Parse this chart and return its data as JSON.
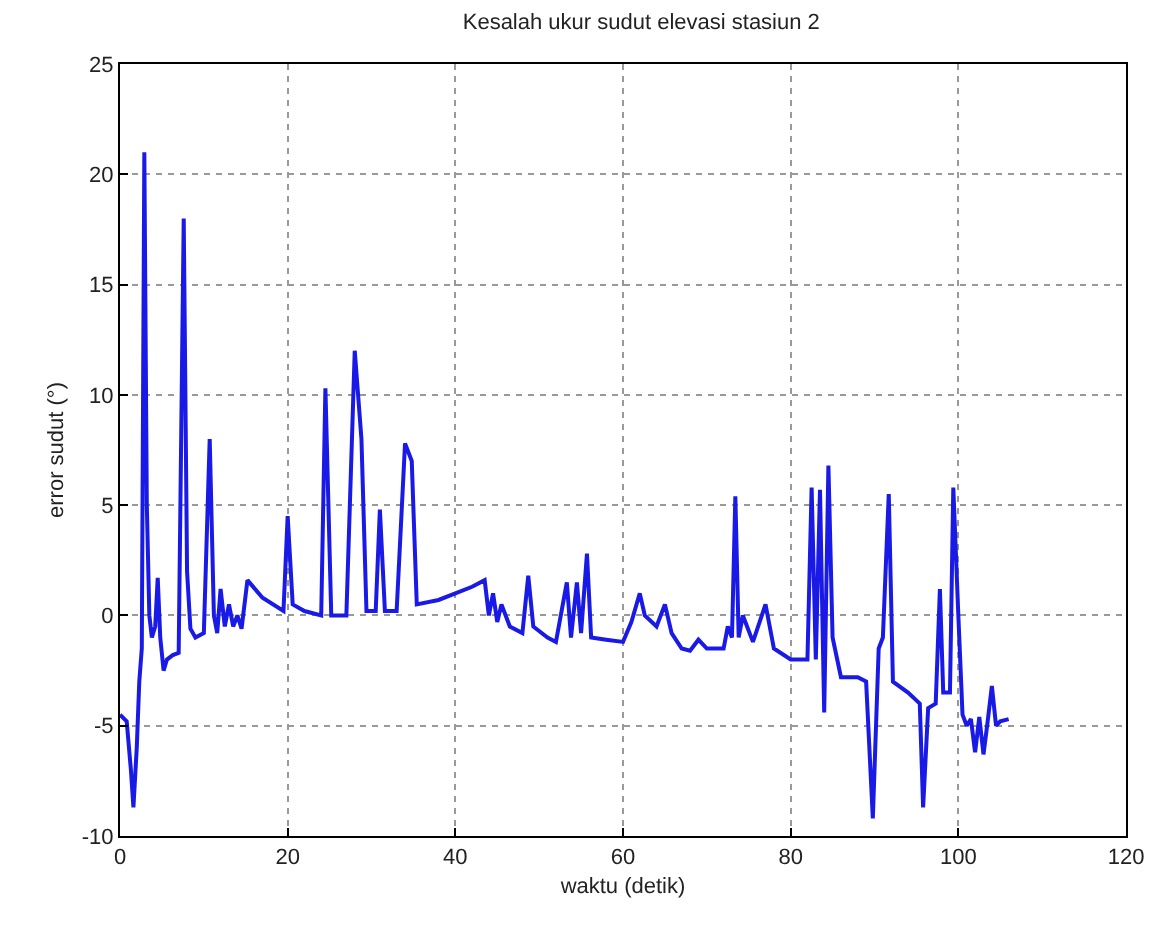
{
  "chart_data": {
    "type": "line",
    "title": "Kesalah ukur sudut elevasi stasiun 2",
    "xlabel": "waktu (detik)",
    "ylabel": "error sudut (°)",
    "xlim": [
      0,
      120
    ],
    "xticks": [
      0,
      20,
      40,
      60,
      80,
      100,
      120
    ],
    "ylim": [
      -10,
      25
    ],
    "yticks": [
      -10,
      -5,
      0,
      5,
      10,
      15,
      20,
      25
    ],
    "grid": true,
    "line_style": "solid",
    "marker": "none",
    "series": [
      {
        "color": "#1a1ae6",
        "x": [
          0,
          0.8,
          1.3,
          1.6,
          2,
          2.3,
          2.6,
          2.9,
          3.2,
          3.5,
          3.8,
          4.2,
          4.5,
          4.8,
          5.2,
          5.6,
          6.3,
          7,
          7.6,
          8,
          8.4,
          9,
          10,
          10.7,
          11.2,
          11.6,
          12,
          12.5,
          13,
          13.5,
          14,
          14.5,
          15.2,
          17,
          19.5,
          20,
          20.6,
          22,
          24,
          24.5,
          25.2,
          27,
          28,
          28.8,
          29.4,
          30.5,
          31,
          31.6,
          33,
          34,
          34.8,
          35.4,
          38,
          40,
          42,
          43.5,
          44,
          44.5,
          45,
          45.5,
          46.5,
          48,
          48.7,
          49.3,
          51,
          52,
          53.3,
          53.8,
          54.5,
          55,
          55.7,
          56.2,
          58,
          60,
          61,
          62,
          62.6,
          64,
          65,
          65.8,
          67,
          68,
          69,
          70,
          72,
          72.5,
          73,
          73.4,
          73.8,
          74.3,
          75.5,
          77,
          78,
          80,
          82,
          82.5,
          83,
          83.5,
          84,
          84.5,
          85,
          86,
          88,
          89,
          89.8,
          90.5,
          91,
          91.7,
          92.2,
          94,
          95.4,
          95.8,
          96.4,
          97.3,
          97.8,
          98.2,
          99,
          99.4,
          100,
          100.5,
          101,
          101.5,
          102,
          102.5,
          103,
          103.5,
          104,
          104.5,
          105,
          106
        ],
        "values": [
          -4.5,
          -4.8,
          -7,
          -8.7,
          -6,
          -3,
          -1.5,
          21,
          5,
          0,
          -1,
          -0.5,
          1.7,
          -1,
          -2.5,
          -2,
          -1.8,
          -1.7,
          18,
          2,
          -0.6,
          -1,
          -0.8,
          8,
          0,
          -0.8,
          1.2,
          -0.5,
          0.5,
          -0.5,
          0,
          -0.6,
          1.6,
          0.8,
          0.2,
          4.5,
          0.5,
          0.2,
          0,
          10.3,
          0,
          0,
          12,
          8,
          0.2,
          0.2,
          4.8,
          0.2,
          0.2,
          7.8,
          7,
          0.5,
          0.7,
          1,
          1.3,
          1.6,
          0,
          1,
          -0.3,
          0.5,
          -0.5,
          -0.8,
          1.8,
          -0.5,
          -1,
          -1.2,
          1.5,
          -1,
          1.5,
          -0.8,
          2.8,
          -1,
          -1.1,
          -1.2,
          -0.3,
          1,
          0,
          -0.5,
          0.5,
          -0.8,
          -1.5,
          -1.6,
          -1.1,
          -1.5,
          -1.5,
          -0.5,
          -1,
          5.4,
          -1,
          0,
          -1.2,
          0.5,
          -1.5,
          -2,
          -2,
          5.8,
          -2,
          5.7,
          -4.4,
          6.8,
          -1,
          -2.8,
          -2.8,
          -3,
          -9.2,
          -1.5,
          -1,
          5.5,
          -3,
          -3.5,
          -4,
          -8.7,
          -4.2,
          -4,
          1.2,
          -3.5,
          -3.5,
          5.8,
          0,
          -4.5,
          -5,
          -4.7,
          -6.2,
          -4.6,
          -6.3,
          -4.8,
          -3.2,
          -5,
          -4.8,
          -4.7
        ]
      }
    ]
  }
}
